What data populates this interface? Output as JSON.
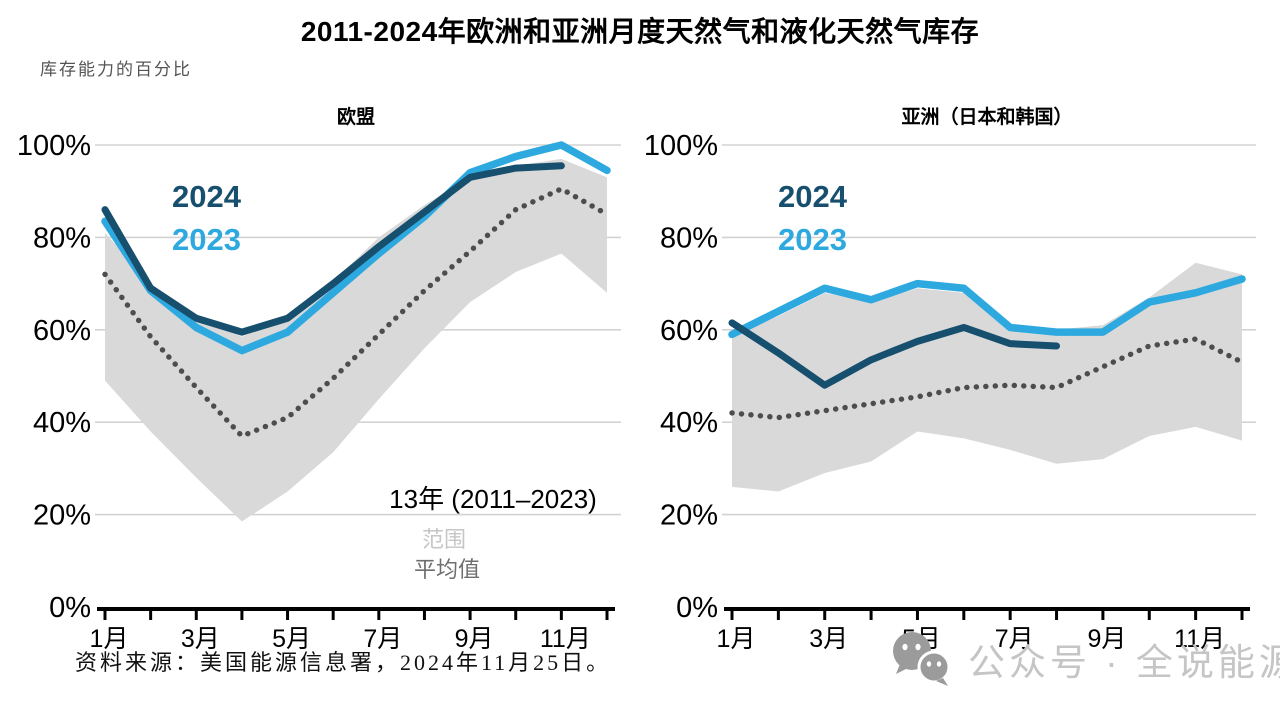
{
  "page": {
    "title": "2011-2024年欧洲和亚洲月度天然气和液化天然气库存",
    "subtitle": "库存能力的百分比",
    "source": "资料来源：美国能源信息署，2024年11月25日。",
    "watermark_text": "公众号 · 全说能源"
  },
  "colors": {
    "y2024": "#174F6E",
    "y2023": "#2EA9E0",
    "band": "#D9D9D9",
    "average": "#4D4D4D",
    "gridline": "#D3D3D3",
    "axis": "#000000",
    "annotation_range": "#C6C6C6",
    "annotation_average": "#6F6F6F",
    "watermark_icon": "#9B9B9B",
    "watermark_text": "#C5C5C5"
  },
  "chart_data": [
    {
      "name": "eu",
      "type": "line",
      "title": "欧盟",
      "ylim": [
        0,
        100
      ],
      "y_tick_values": [
        0,
        20,
        40,
        60,
        80,
        100
      ],
      "y_tick_labels": [
        "0%",
        "20%",
        "40%",
        "60%",
        "80%",
        "100%"
      ],
      "x_tick_months": [
        1,
        3,
        5,
        7,
        9,
        11
      ],
      "x_tick_labels": [
        "1月",
        "3月",
        "5月",
        "7月",
        "9月",
        "11月"
      ],
      "series": [
        {
          "name": "2024",
          "color_key": "y2024",
          "style": "solid",
          "values": [
            86,
            69,
            62.5,
            59.5,
            62.5,
            70,
            78,
            85.5,
            93,
            95,
            95.5
          ]
        },
        {
          "name": "2023",
          "color_key": "y2023",
          "style": "solid",
          "values": [
            83.5,
            68.5,
            60.5,
            55.5,
            59.5,
            68,
            76.5,
            84.5,
            94,
            97.5,
            100,
            94.5
          ]
        },
        {
          "name": "13年平均值 (2011–2023)",
          "color_key": "average",
          "style": "dotted",
          "values": [
            72,
            58.5,
            47.5,
            37,
            41,
            49.5,
            59,
            68.5,
            77,
            86,
            90.5,
            85
          ]
        }
      ],
      "band": {
        "name": "13年范围 (2011–2023)",
        "upper": [
          81,
          70,
          63,
          58.5,
          62.5,
          70.5,
          80,
          87,
          93,
          95.5,
          97,
          93
        ],
        "lower": [
          49,
          38,
          28,
          18.5,
          25,
          33.5,
          45,
          56,
          66,
          72.5,
          76.5,
          68
        ]
      },
      "annotation": {
        "line1": "13年 (2011–2023)",
        "line2": "范围",
        "line3": "平均值"
      }
    },
    {
      "name": "asia",
      "type": "line",
      "title": "亚洲（日本和韩国）",
      "ylim": [
        0,
        100
      ],
      "y_tick_values": [
        0,
        20,
        40,
        60,
        80,
        100
      ],
      "y_tick_labels": [
        "0%",
        "20%",
        "40%",
        "60%",
        "80%",
        "100%"
      ],
      "x_tick_months": [
        1,
        3,
        5,
        7,
        9,
        11
      ],
      "x_tick_labels": [
        "1月",
        "3月",
        "5月",
        "7月",
        "9月",
        "11月"
      ],
      "series": [
        {
          "name": "2024",
          "color_key": "y2024",
          "style": "solid",
          "values": [
            61.5,
            55,
            48,
            53.5,
            57.5,
            60.5,
            57,
            56.5
          ]
        },
        {
          "name": "2023",
          "color_key": "y2023",
          "style": "solid",
          "values": [
            59,
            64,
            69,
            66.5,
            70,
            69,
            60.5,
            59.5,
            59.5,
            66,
            68,
            71
          ]
        },
        {
          "name": "13年平均值 (2011–2023)",
          "color_key": "average",
          "style": "dotted",
          "values": [
            42,
            41,
            42.5,
            44,
            45.5,
            47.5,
            48,
            47.5,
            52,
            56.5,
            58,
            53
          ]
        }
      ],
      "band": {
        "name": "13年范围 (2011–2023)",
        "upper": [
          58.5,
          63,
          68,
          66,
          69,
          68,
          61,
          60,
          61,
          67,
          74.5,
          72
        ],
        "lower": [
          26,
          25,
          29,
          31.5,
          38,
          36.5,
          34,
          31,
          32,
          37,
          39,
          36
        ]
      }
    }
  ]
}
